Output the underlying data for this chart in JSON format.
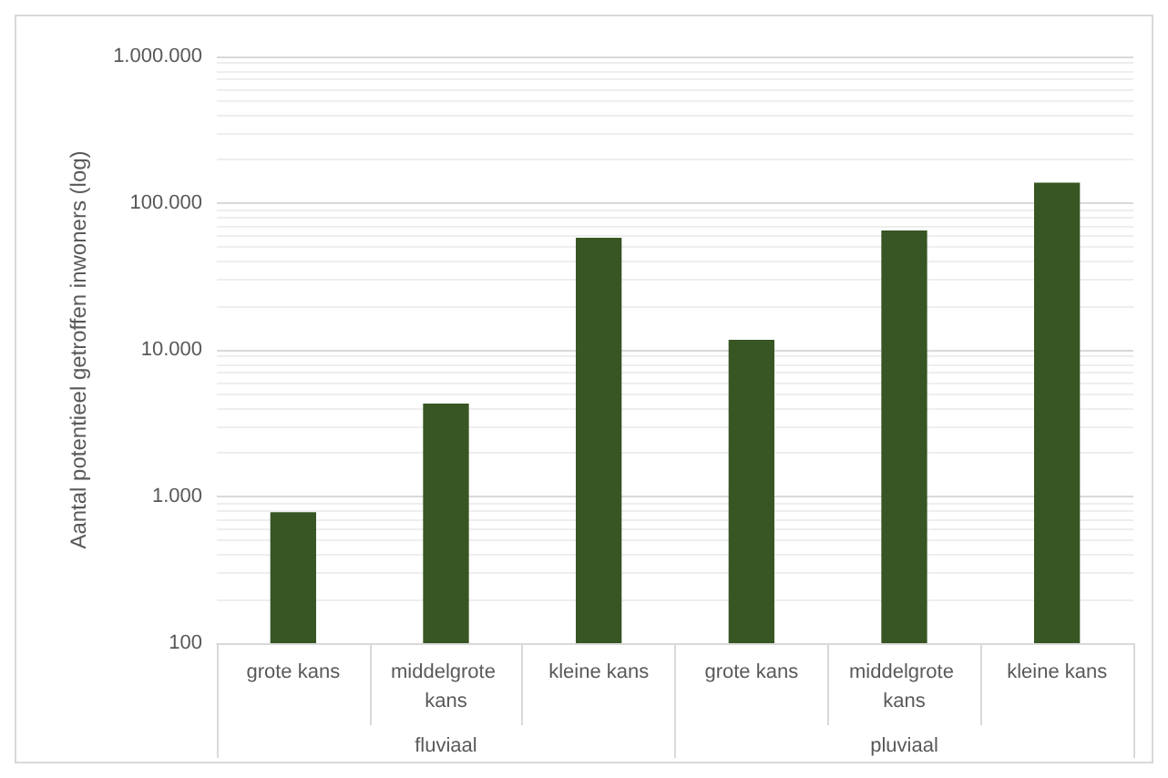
{
  "chart_data": {
    "type": "bar",
    "ylabel": "Aantal potentieel getroffen inwoners (log)",
    "categories": [
      "grote kans",
      "middelgrote kans",
      "kleine kans",
      "grote kans",
      "middelgrote kans",
      "kleine kans"
    ],
    "values": [
      780,
      4300,
      58000,
      11700,
      65000,
      138000
    ],
    "color": "#375623",
    "annotations": [
      "fluviaal",
      "pluviaal"
    ],
    "log": true,
    "ylim": [
      100,
      1000000
    ],
    "yticks": [
      {
        "value": 100,
        "label": "100"
      },
      {
        "value": 1000,
        "label": "1.000"
      },
      {
        "value": 10000,
        "label": "10.000"
      },
      {
        "value": 100000,
        "label": "100.000"
      },
      {
        "value": 1000000,
        "label": "1.000.000"
      }
    ],
    "grid": true
  }
}
